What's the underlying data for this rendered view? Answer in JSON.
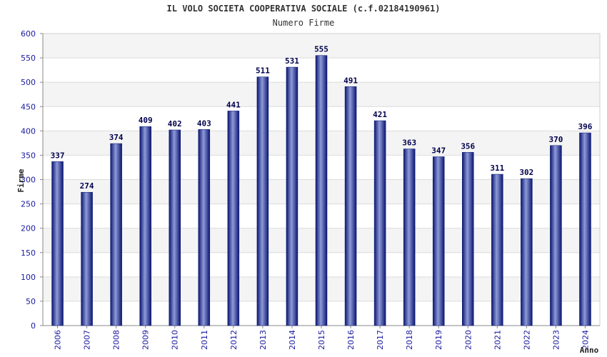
{
  "chart_data": {
    "type": "bar",
    "title": "IL VOLO SOCIETA COOPERATIVA SOCIALE (c.f.02184190961)",
    "subtitle": "Numero Firme",
    "xlabel": "Anno",
    "ylabel": "Firme",
    "categories": [
      "2006",
      "2007",
      "2008",
      "2009",
      "2010",
      "2011",
      "2012",
      "2013",
      "2014",
      "2015",
      "2016",
      "2017",
      "2018",
      "2019",
      "2020",
      "2021",
      "2022",
      "2023",
      "2024"
    ],
    "values": [
      337,
      274,
      374,
      409,
      402,
      403,
      441,
      511,
      531,
      555,
      491,
      421,
      363,
      347,
      356,
      311,
      302,
      370,
      396
    ],
    "ylim": [
      0,
      600
    ],
    "yticks": [
      0,
      50,
      100,
      150,
      200,
      250,
      300,
      350,
      400,
      450,
      500,
      550,
      600
    ],
    "grid": true,
    "bar_color": "#1c2a8c",
    "tick_color": "#1a1aa0"
  }
}
